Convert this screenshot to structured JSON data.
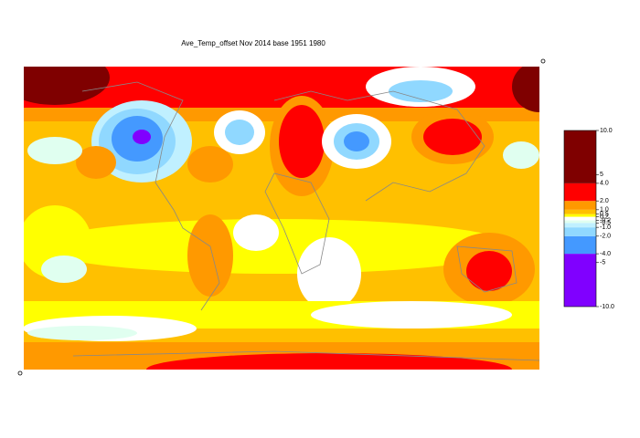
{
  "chart_data": {
    "type": "filled-contour-map",
    "title": "Ave_Temp_offset Nov 2014  base 1951 1980",
    "levels": [
      -10,
      -4,
      -2,
      -1,
      -0.5,
      -0.2,
      0.2,
      0.5,
      1,
      2,
      4,
      10
    ],
    "colors": [
      "#8000ff",
      "#4499ff",
      "#90d8ff",
      "#c0f0ff",
      "#e0fff0",
      "#ffffff",
      "#ffff00",
      "#ffc000",
      "#ff9900",
      "#ff0000",
      "#7f0000"
    ],
    "ylim": [
      -10,
      10
    ],
    "yticks": [
      {
        "value": 10,
        "label": "10.0"
      },
      5,
      {
        "value": 4,
        "label": "4.0"
      },
      {
        "value": 2,
        "label": "2.0"
      },
      {
        "value": 1,
        "label": "1.0"
      },
      0.5,
      0.2,
      -0.2,
      -0.5,
      {
        "value": -1,
        "label": "-1.0"
      },
      {
        "value": -2,
        "label": "-2.0"
      },
      {
        "value": -4,
        "label": "-4.0"
      },
      -5,
      {
        "value": -10,
        "label": "-10.0"
      }
    ]
  }
}
